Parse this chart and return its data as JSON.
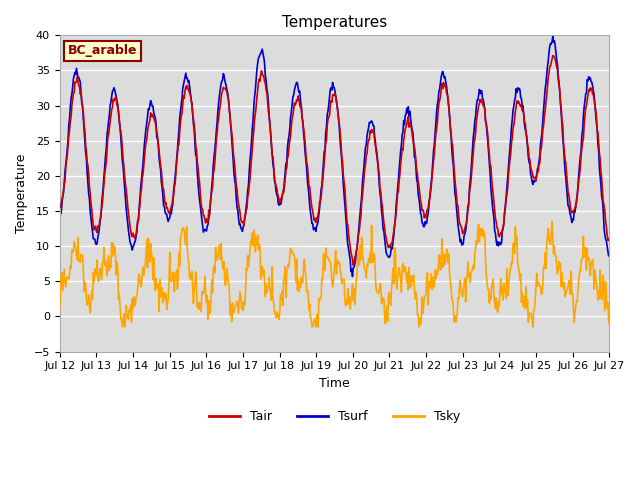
{
  "title": "Temperatures",
  "xlabel": "Time",
  "ylabel": "Temperature",
  "ylim": [
    -5,
    40
  ],
  "yticks": [
    -5,
    0,
    5,
    10,
    15,
    20,
    25,
    30,
    35,
    40
  ],
  "xtick_labels": [
    "Jul 12",
    "Jul 13",
    "Jul 14",
    "Jul 15",
    "Jul 16",
    "Jul 17",
    "Jul 18",
    "Jul 19",
    "Jul 20",
    "Jul 21",
    "Jul 22",
    "Jul 23",
    "Jul 24",
    "Jul 25",
    "Jul 26",
    "Jul 27"
  ],
  "annotation_text": "BC_arable",
  "annotation_bg": "#ffffcc",
  "annotation_border": "#8B0000",
  "tair_color": "#cc0000",
  "tsurf_color": "#0000cc",
  "tsky_color": "#FFA500",
  "grid_color": "#ffffff",
  "bg_color": "#dcdcdc",
  "line_width": 1.2,
  "legend_entries": [
    "Tair",
    "Tsurf",
    "Tsky"
  ],
  "figsize": [
    6.4,
    4.8
  ],
  "dpi": 100
}
